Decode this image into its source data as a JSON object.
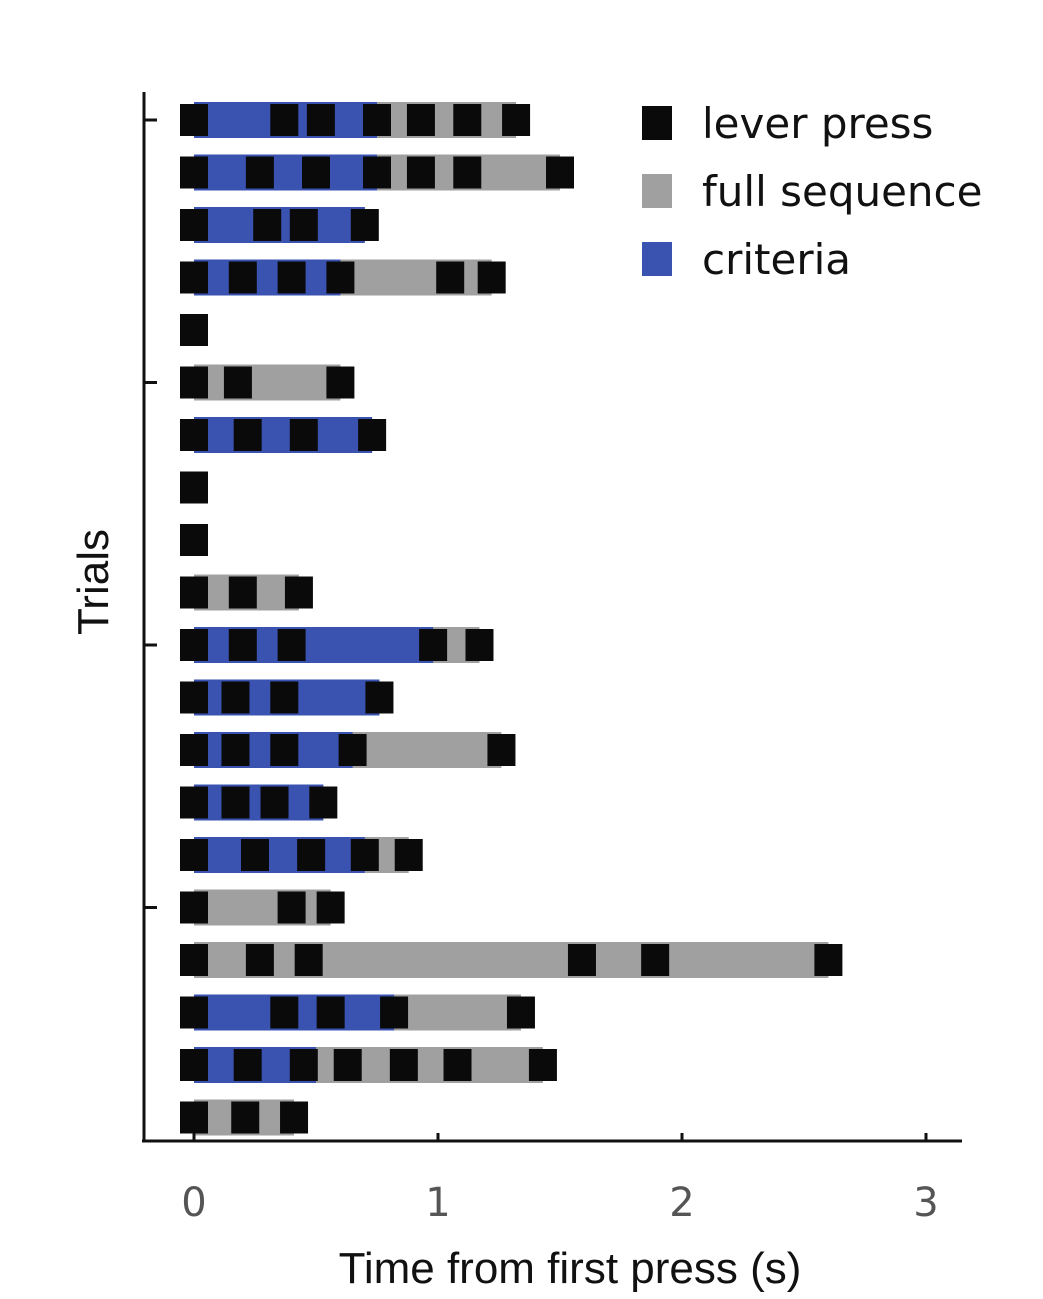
{
  "chart_data": {
    "type": "event-raster",
    "xlabel": "Time from first press (s)",
    "ylabel": "Trials",
    "xlim": [
      0,
      3
    ],
    "x_ticks": [
      0,
      1,
      2,
      3
    ],
    "x_tick_labels": [
      "0",
      "1",
      "2",
      "3"
    ],
    "legend": [
      {
        "label": "lever press",
        "color": "#0a0a0a",
        "kind": "press"
      },
      {
        "label": "full sequence",
        "color": "#a0a0a0",
        "kind": "full"
      },
      {
        "label": "criteria",
        "color": "#3a52b0",
        "kind": "criteria"
      }
    ],
    "trials": [
      {
        "presses": [
          0.0,
          0.37,
          0.52,
          0.75,
          0.93,
          1.12,
          1.32
        ],
        "full_end": 1.32,
        "criteria_end": 0.75
      },
      {
        "presses": [
          0.0,
          0.27,
          0.5,
          0.75,
          0.93,
          1.12,
          1.5
        ],
        "full_end": 1.5,
        "criteria_end": 0.75
      },
      {
        "presses": [
          0.0,
          0.3,
          0.45,
          0.7
        ],
        "full_end": 0.7,
        "criteria_end": 0.7
      },
      {
        "presses": [
          0.0,
          0.2,
          0.4,
          0.6,
          1.05,
          1.22
        ],
        "full_end": 1.22,
        "criteria_end": 0.6
      },
      {
        "presses": [
          0.0
        ],
        "full_end": 0.0,
        "criteria_end": 0.0
      },
      {
        "presses": [
          0.0,
          0.18,
          0.6
        ],
        "full_end": 0.6,
        "criteria_end": 0.0
      },
      {
        "presses": [
          0.0,
          0.22,
          0.45,
          0.73
        ],
        "full_end": 0.73,
        "criteria_end": 0.73
      },
      {
        "presses": [
          0.0
        ],
        "full_end": 0.0,
        "criteria_end": 0.0
      },
      {
        "presses": [
          0.0
        ],
        "full_end": 0.0,
        "criteria_end": 0.0
      },
      {
        "presses": [
          0.0,
          0.2,
          0.43
        ],
        "full_end": 0.43,
        "criteria_end": 0.0
      },
      {
        "presses": [
          0.0,
          0.2,
          0.4,
          0.98,
          1.17
        ],
        "full_end": 1.17,
        "criteria_end": 0.98
      },
      {
        "presses": [
          0.0,
          0.17,
          0.37,
          0.76
        ],
        "full_end": 0.76,
        "criteria_end": 0.76
      },
      {
        "presses": [
          0.0,
          0.17,
          0.37,
          0.65,
          1.26
        ],
        "full_end": 1.26,
        "criteria_end": 0.65
      },
      {
        "presses": [
          0.0,
          0.17,
          0.33,
          0.53
        ],
        "full_end": 0.53,
        "criteria_end": 0.53
      },
      {
        "presses": [
          0.0,
          0.25,
          0.48,
          0.7,
          0.88
        ],
        "full_end": 0.88,
        "criteria_end": 0.7
      },
      {
        "presses": [
          0.0,
          0.4,
          0.56
        ],
        "full_end": 0.56,
        "criteria_end": 0.0
      },
      {
        "presses": [
          0.0,
          0.27,
          0.47,
          1.59,
          1.89,
          2.6
        ],
        "full_end": 2.6,
        "criteria_end": 0.0
      },
      {
        "presses": [
          0.0,
          0.37,
          0.56,
          0.82,
          1.34
        ],
        "full_end": 1.34,
        "criteria_end": 0.82
      },
      {
        "presses": [
          0.0,
          0.22,
          0.45,
          0.63,
          0.86,
          1.08,
          1.43
        ],
        "full_end": 1.43,
        "criteria_end": 0.5
      },
      {
        "presses": [
          0.0,
          0.21,
          0.41
        ],
        "full_end": 0.41,
        "criteria_end": 0.0
      }
    ]
  }
}
